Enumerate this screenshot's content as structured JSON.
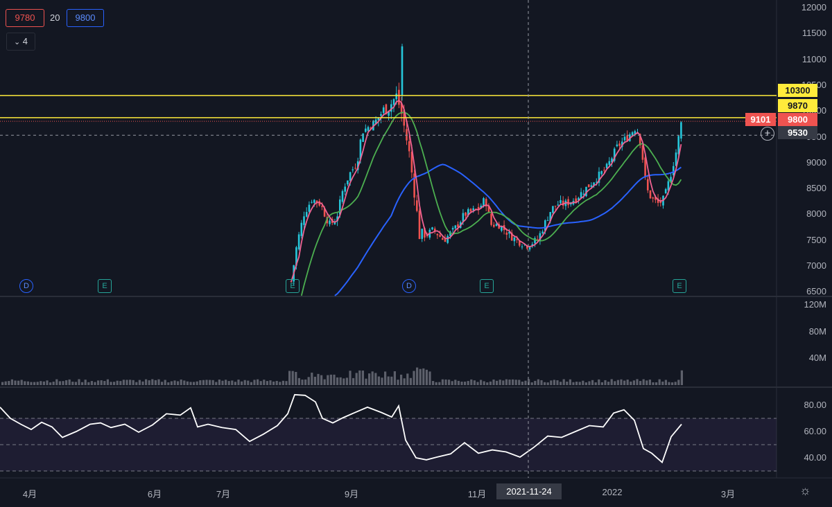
{
  "header": {
    "ma1_value": "9780",
    "ma_period": "20",
    "ma2_value": "9800",
    "collapse_count": "4",
    "collapse_icon": "chevron-down-icon"
  },
  "colors": {
    "background": "#131722",
    "up": "#26c6da",
    "down": "#ef5350",
    "ma_pink": "#f06292",
    "ma_green": "#4caf50",
    "ma_blue": "#2962ff",
    "rsi": "#ffffff",
    "hline": "#ffeb3b"
  },
  "price_axis": {
    "labels": [
      "12000",
      "11500",
      "11000",
      "10500",
      "10000",
      "9500",
      "9000",
      "8500",
      "8000",
      "7500",
      "7000",
      "6500"
    ]
  },
  "volume_axis": {
    "labels": [
      "120M",
      "80M",
      "40M"
    ]
  },
  "rsi_axis": {
    "labels": [
      "80.00",
      "60.00",
      "40.00"
    ]
  },
  "tags": {
    "hline_upper": "10300",
    "hline_lower": "9870",
    "last_left": "9101",
    "last_price": "9800",
    "crosshair_price": "9530",
    "crosshair_date": "2021-11-24"
  },
  "x_axis": {
    "labels": [
      "4月",
      "6月",
      "7月",
      "9月",
      "11月",
      "2022",
      "3月"
    ]
  },
  "events": [
    {
      "type": "D"
    },
    {
      "type": "E"
    },
    {
      "type": "E"
    },
    {
      "type": "D"
    },
    {
      "type": "E"
    },
    {
      "type": "E"
    }
  ],
  "chart_data": {
    "type": "candlestick",
    "price_range": [
      6400,
      12100
    ],
    "horizontal_lines": [
      10300,
      9870
    ],
    "last_price": 9800,
    "crosshair": {
      "date": "2021-11-24",
      "price": 9530
    },
    "ohlc_sample": [
      {
        "period": "2021-08-20",
        "open": 6700,
        "high": 7000,
        "low": 6600,
        "close": 6900
      },
      {
        "period": "2021-09-05",
        "open": 8500,
        "high": 9500,
        "low": 8300,
        "close": 9300
      },
      {
        "period": "2021-09-25",
        "open": 10300,
        "high": 11300,
        "low": 9800,
        "close": 10900
      },
      {
        "period": "2021-10-10",
        "open": 8400,
        "high": 8700,
        "low": 7400,
        "close": 7600
      },
      {
        "period": "2021-11-01",
        "open": 8000,
        "high": 8900,
        "low": 7900,
        "close": 8500
      },
      {
        "period": "2021-11-24",
        "open": 7500,
        "high": 7700,
        "low": 7200,
        "close": 7400
      },
      {
        "period": "2022-01-05",
        "open": 9400,
        "high": 9800,
        "low": 9200,
        "close": 9600
      },
      {
        "period": "2022-01-20",
        "open": 8300,
        "high": 8600,
        "low": 7900,
        "close": 8200
      },
      {
        "period": "2022-02-05",
        "open": 9100,
        "high": 9800,
        "low": 9000,
        "close": 9800
      }
    ],
    "rsi_bands": [
      70,
      50,
      30
    ],
    "rsi_range": [
      28,
      92
    ],
    "volume_range": [
      0,
      120
    ]
  }
}
